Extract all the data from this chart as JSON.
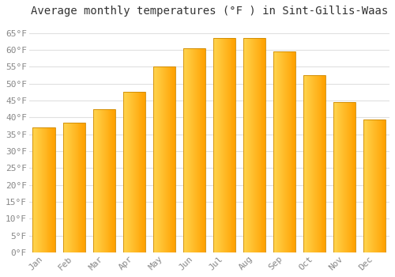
{
  "title": "Average monthly temperatures (°F ) in Sint-Gillis-Waas",
  "months": [
    "Jan",
    "Feb",
    "Mar",
    "Apr",
    "May",
    "Jun",
    "Jul",
    "Aug",
    "Sep",
    "Oct",
    "Nov",
    "Dec"
  ],
  "values": [
    37.0,
    38.5,
    42.5,
    47.5,
    55.0,
    60.5,
    63.5,
    63.5,
    59.5,
    52.5,
    44.5,
    39.5
  ],
  "bar_color_left": "#FFD54F",
  "bar_color_right": "#FFA000",
  "bar_edge_color": "#CC8800",
  "ylim": [
    0,
    68
  ],
  "yticks": [
    0,
    5,
    10,
    15,
    20,
    25,
    30,
    35,
    40,
    45,
    50,
    55,
    60,
    65
  ],
  "ytick_labels": [
    "0°F",
    "5°F",
    "10°F",
    "15°F",
    "20°F",
    "25°F",
    "30°F",
    "35°F",
    "40°F",
    "45°F",
    "50°F",
    "55°F",
    "60°F",
    "65°F"
  ],
  "grid_color": "#e0e0e0",
  "bg_color": "#ffffff",
  "title_fontsize": 10,
  "tick_fontsize": 8,
  "bar_width": 0.75,
  "n_gradient_strips": 30
}
